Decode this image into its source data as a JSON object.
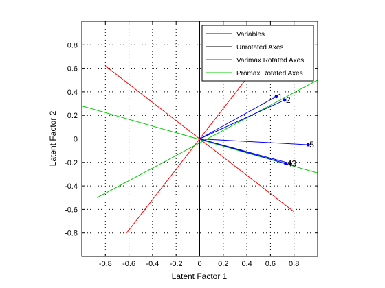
{
  "chart_data": {
    "type": "line",
    "title": "",
    "xlabel": "Latent Factor 1",
    "ylabel": "Latent Factor 2",
    "xlim": [
      -1,
      1
    ],
    "ylim": [
      -1,
      1
    ],
    "xticks": [
      -0.8,
      -0.6,
      -0.4,
      -0.2,
      0,
      0.2,
      0.4,
      0.6,
      0.8
    ],
    "yticks": [
      -0.8,
      -0.6,
      -0.4,
      -0.2,
      0,
      0.2,
      0.4,
      0.6,
      0.8
    ],
    "xtick_labels": [
      "-0.8",
      "-0.6",
      "-0.4",
      "-0.2",
      "0",
      "0.2",
      "0.4",
      "0.6",
      "0.8"
    ],
    "ytick_labels": [
      "-0.8",
      "-0.6",
      "-0.4",
      "-0.2",
      "0",
      "0.2",
      "0.4",
      "0.6",
      "0.8"
    ],
    "grid": true,
    "legend_position": "top-right",
    "series": [
      {
        "name": "Variables",
        "color": "#0000ff",
        "vectors": [
          {
            "label": "1",
            "x": 0.65,
            "y": 0.36
          },
          {
            "label": "2",
            "x": 0.72,
            "y": 0.33
          },
          {
            "label": "3",
            "x": 0.77,
            "y": -0.21
          },
          {
            "label": "4",
            "x": 0.73,
            "y": -0.21
          },
          {
            "label": "5",
            "x": 0.92,
            "y": -0.05
          }
        ]
      },
      {
        "name": "Unrotated Axes",
        "color": "#000000",
        "lines": [
          {
            "x": [
              -1,
              1
            ],
            "y": [
              0,
              0
            ]
          },
          {
            "x": [
              0,
              0
            ],
            "y": [
              -1,
              1
            ]
          }
        ]
      },
      {
        "name": "Varimax Rotated Axes",
        "color": "#ff0000",
        "lines": [
          {
            "x": [
              -0.8,
              0.8
            ],
            "y": [
              0.62,
              -0.62
            ]
          },
          {
            "x": [
              -0.62,
              0.62
            ],
            "y": [
              -0.8,
              0.8
            ]
          }
        ]
      },
      {
        "name": "Promax Rotated Axes",
        "color": "#00cc00",
        "lines": [
          {
            "x": [
              -1,
              1
            ],
            "y": [
              0.28,
              -0.29
            ]
          },
          {
            "x": [
              -0.87,
              1
            ],
            "y": [
              -0.5,
              0.5
            ]
          }
        ]
      }
    ]
  }
}
